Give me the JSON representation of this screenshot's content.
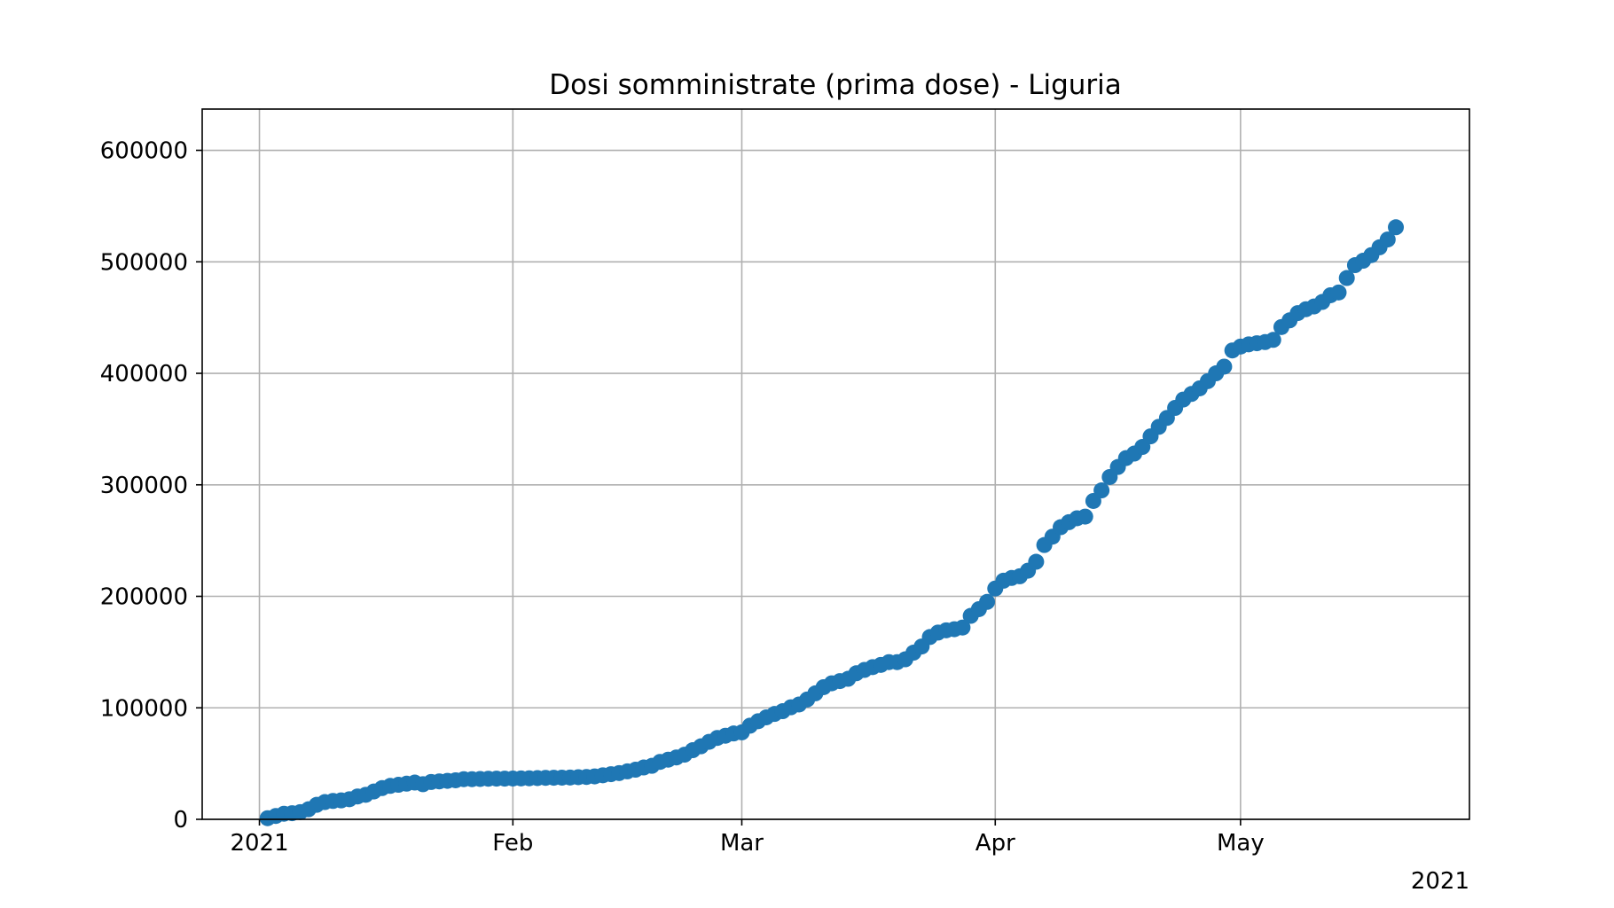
{
  "chart_data": {
    "type": "scatter",
    "title": "Dosi somministrate (prima dose) - Liguria",
    "xlabel": "",
    "ylabel": "",
    "x_axis": {
      "type": "date",
      "range": [
        "2020-12-25",
        "2021-05-29"
      ],
      "ticks": [
        {
          "date": "2021-01-01",
          "label": "2021"
        },
        {
          "date": "2021-02-01",
          "label": "Feb"
        },
        {
          "date": "2021-03-01",
          "label": "Mar"
        },
        {
          "date": "2021-04-01",
          "label": "Apr"
        },
        {
          "date": "2021-05-01",
          "label": "May"
        }
      ],
      "offset_label": "2021"
    },
    "y_axis": {
      "range": [
        0,
        637000
      ],
      "ticks": [
        0,
        100000,
        200000,
        300000,
        400000,
        500000,
        600000
      ]
    },
    "grid": true,
    "marker_color": "#1f77b4",
    "series": [
      {
        "name": "",
        "x": [
          "2021-01-02",
          "2021-01-03",
          "2021-01-04",
          "2021-01-05",
          "2021-01-06",
          "2021-01-07",
          "2021-01-08",
          "2021-01-09",
          "2021-01-10",
          "2021-01-11",
          "2021-01-12",
          "2021-01-13",
          "2021-01-14",
          "2021-01-15",
          "2021-01-16",
          "2021-01-17",
          "2021-01-18",
          "2021-01-19",
          "2021-01-20",
          "2021-01-21",
          "2021-01-22",
          "2021-01-23",
          "2021-01-24",
          "2021-01-25",
          "2021-01-26",
          "2021-01-27",
          "2021-01-28",
          "2021-01-29",
          "2021-01-30",
          "2021-01-31",
          "2021-02-01",
          "2021-02-02",
          "2021-02-03",
          "2021-02-04",
          "2021-02-05",
          "2021-02-06",
          "2021-02-07",
          "2021-02-08",
          "2021-02-09",
          "2021-02-10",
          "2021-02-11",
          "2021-02-12",
          "2021-02-13",
          "2021-02-14",
          "2021-02-15",
          "2021-02-16",
          "2021-02-17",
          "2021-02-18",
          "2021-02-19",
          "2021-02-20",
          "2021-02-21",
          "2021-02-22",
          "2021-02-23",
          "2021-02-24",
          "2021-02-25",
          "2021-02-26",
          "2021-02-27",
          "2021-02-28",
          "2021-03-01",
          "2021-03-02",
          "2021-03-03",
          "2021-03-04",
          "2021-03-05",
          "2021-03-06",
          "2021-03-07",
          "2021-03-08",
          "2021-03-09",
          "2021-03-10",
          "2021-03-11",
          "2021-03-12",
          "2021-03-13",
          "2021-03-14",
          "2021-03-15",
          "2021-03-16",
          "2021-03-17",
          "2021-03-18",
          "2021-03-19",
          "2021-03-20",
          "2021-03-21",
          "2021-03-22",
          "2021-03-23",
          "2021-03-24",
          "2021-03-25",
          "2021-03-26",
          "2021-03-27",
          "2021-03-28",
          "2021-03-29",
          "2021-03-30",
          "2021-03-31",
          "2021-04-01",
          "2021-04-02",
          "2021-04-03",
          "2021-04-04",
          "2021-04-05",
          "2021-04-06",
          "2021-04-07",
          "2021-04-08",
          "2021-04-09",
          "2021-04-10",
          "2021-04-11",
          "2021-04-12",
          "2021-04-13",
          "2021-04-14",
          "2021-04-15",
          "2021-04-16",
          "2021-04-17",
          "2021-04-18",
          "2021-04-19",
          "2021-04-20",
          "2021-04-21",
          "2021-04-22",
          "2021-04-23",
          "2021-04-24",
          "2021-04-25",
          "2021-04-26",
          "2021-04-27",
          "2021-04-28",
          "2021-04-29",
          "2021-04-30",
          "2021-05-01",
          "2021-05-02",
          "2021-05-03",
          "2021-05-04",
          "2021-05-05",
          "2021-05-06",
          "2021-05-07",
          "2021-05-08",
          "2021-05-09",
          "2021-05-10",
          "2021-05-11",
          "2021-05-12",
          "2021-05-13",
          "2021-05-14",
          "2021-05-15",
          "2021-05-16",
          "2021-05-17",
          "2021-05-18",
          "2021-05-19",
          "2021-05-20"
        ],
        "y": [
          1000,
          3000,
          5000,
          5500,
          6500,
          9000,
          13000,
          15500,
          16500,
          17000,
          18000,
          20500,
          22000,
          25000,
          28000,
          30000,
          31000,
          32000,
          33000,
          31500,
          33500,
          34000,
          34500,
          35000,
          36000,
          36000,
          36200,
          36400,
          36500,
          36500,
          36600,
          36700,
          36800,
          37000,
          37200,
          37300,
          37400,
          37500,
          37800,
          38000,
          38500,
          39500,
          40500,
          41500,
          43000,
          44500,
          46500,
          48000,
          51500,
          53500,
          55500,
          58000,
          62000,
          65500,
          69500,
          73000,
          75000,
          77000,
          78000,
          84000,
          88000,
          91500,
          94500,
          97000,
          100500,
          103000,
          107500,
          113000,
          118500,
          122000,
          124000,
          126000,
          131000,
          134000,
          136500,
          138500,
          141000,
          141000,
          143500,
          149500,
          155000,
          163500,
          167500,
          169500,
          170500,
          172000,
          182500,
          188500,
          195000,
          207000,
          214000,
          216500,
          218000,
          223000,
          231000,
          246000,
          253500,
          262000,
          266500,
          270000,
          271500,
          285500,
          295000,
          307000,
          316000,
          324000,
          328000,
          334000,
          343500,
          352000,
          360000,
          369000,
          376500,
          381500,
          386500,
          393000,
          400000,
          406000,
          420500,
          424000,
          426000,
          427000,
          428000,
          430000,
          441500,
          447500,
          454000,
          457500,
          460000,
          464000,
          470000,
          472500,
          485500,
          497000,
          501000,
          506000,
          513000,
          520000,
          531000
        ]
      }
    ]
  }
}
